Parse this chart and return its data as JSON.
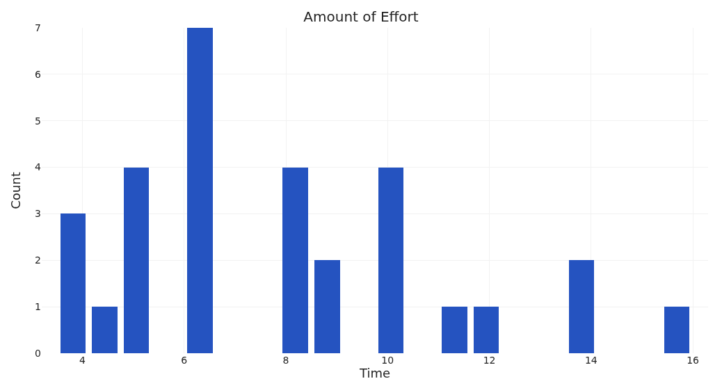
{
  "chart_data": {
    "type": "histogram",
    "title": "Amount of Effort",
    "xlabel": "Time",
    "ylabel": "Count",
    "bins": [
      3.5,
      4.125,
      4.75,
      5.375,
      6.0,
      6.625,
      7.25,
      7.875,
      8.5,
      9.125,
      9.75,
      10.375,
      11.0,
      11.625,
      12.25,
      12.875,
      13.5,
      14.125,
      14.75,
      15.375,
      16.0
    ],
    "values": [
      3,
      1,
      4,
      0,
      7,
      0,
      0,
      4,
      2,
      0,
      4,
      0,
      1,
      1,
      0,
      0,
      2,
      0,
      0,
      1
    ],
    "color": "#2553c0",
    "xlim": [
      3.2,
      16.3
    ],
    "xticks": [
      4,
      6,
      8,
      10,
      12,
      14,
      16
    ],
    "ylim": [
      0,
      7
    ],
    "yticks": [
      0,
      1,
      2,
      3,
      4,
      5,
      6,
      7
    ],
    "grid": true
  }
}
